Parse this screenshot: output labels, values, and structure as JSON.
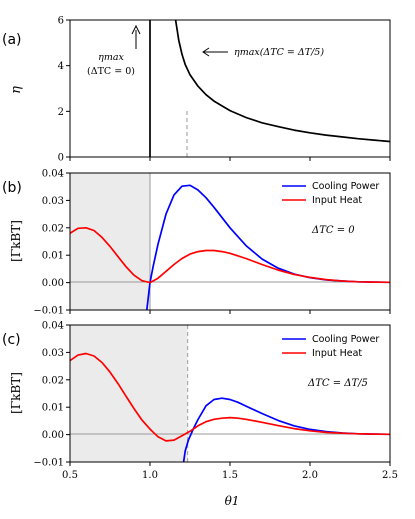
{
  "chart_data": [
    {
      "panel_label": "(a)",
      "type": "line",
      "ylabel": "η",
      "xlim": [
        0.5,
        2.5
      ],
      "ylim": [
        0,
        6
      ],
      "yticks": [
        "0",
        "2",
        "4",
        "6"
      ],
      "series": [
        {
          "color": "#000000",
          "x": [
            0.995,
            1.0,
            1.0,
            1.005
          ],
          "y": [
            0,
            0,
            6,
            6
          ]
        },
        {
          "color": "#000000",
          "x": [
            1.16,
            1.18,
            1.2,
            1.22,
            1.25,
            1.3,
            1.35,
            1.4,
            1.5,
            1.6,
            1.7,
            1.8,
            1.9,
            2.0,
            2.1,
            2.2,
            2.3,
            2.4,
            2.5
          ],
          "y": [
            6.0,
            5.1,
            4.5,
            4.05,
            3.6,
            3.1,
            2.73,
            2.45,
            2.03,
            1.73,
            1.5,
            1.33,
            1.18,
            1.06,
            0.96,
            0.88,
            0.8,
            0.74,
            0.68
          ]
        }
      ],
      "vline_dashed_x": 1.22,
      "annotations": [
        {
          "line1": "ηmax",
          "line2": "(ΔTC = 0)"
        },
        {
          "text": "ηmax(ΔTC = ΔT/5)"
        }
      ]
    },
    {
      "panel_label": "(b)",
      "type": "line",
      "ylabel": "[ΓkBT]",
      "xlim": [
        0.5,
        2.5
      ],
      "ylim": [
        -0.01,
        0.04
      ],
      "yticks": [
        "−0.01",
        "0.00",
        "0.01",
        "0.02",
        "0.03",
        "0.04"
      ],
      "shade_x": [
        0.5,
        1.0
      ],
      "hline_y": 0,
      "annotation": "ΔTC = 0",
      "legend_position": "top-right",
      "series": [
        {
          "name": "Cooling Power",
          "color": "#0000ff",
          "x": [
            0.98,
            1.0,
            1.02,
            1.05,
            1.1,
            1.15,
            1.2,
            1.25,
            1.3,
            1.35,
            1.4,
            1.5,
            1.6,
            1.7,
            1.8,
            1.9,
            2.0,
            2.1,
            2.2,
            2.3,
            2.4,
            2.5
          ],
          "y": [
            -0.01,
            0.0,
            0.006,
            0.014,
            0.025,
            0.032,
            0.0352,
            0.0355,
            0.0338,
            0.031,
            0.0275,
            0.02,
            0.0135,
            0.0086,
            0.0053,
            0.0031,
            0.0018,
            0.001,
            0.0006,
            0.0003,
            0.0002,
            0.0001
          ]
        },
        {
          "name": "Input Heat",
          "color": "#ff0000",
          "x": [
            0.5,
            0.55,
            0.6,
            0.65,
            0.7,
            0.75,
            0.8,
            0.85,
            0.9,
            0.95,
            1.0,
            1.05,
            1.1,
            1.15,
            1.2,
            1.25,
            1.3,
            1.35,
            1.4,
            1.45,
            1.5,
            1.6,
            1.7,
            1.8,
            1.9,
            2.0,
            2.1,
            2.2,
            2.3,
            2.4,
            2.5
          ],
          "y": [
            0.018,
            0.0198,
            0.02,
            0.019,
            0.0165,
            0.0132,
            0.0095,
            0.0058,
            0.0027,
            0.0007,
            0.0,
            0.0016,
            0.0041,
            0.0066,
            0.0088,
            0.0104,
            0.0113,
            0.0117,
            0.0117,
            0.0113,
            0.0107,
            0.0088,
            0.0066,
            0.0046,
            0.003,
            0.0019,
            0.0011,
            0.0006,
            0.0003,
            0.0002,
            0.0001
          ]
        }
      ]
    },
    {
      "panel_label": "(c)",
      "type": "line",
      "xlabel": "θ1",
      "ylabel": "[ΓkBT]",
      "xlim": [
        0.5,
        2.5
      ],
      "ylim": [
        -0.01,
        0.04
      ],
      "xticks": [
        "0.5",
        "1.0",
        "1.5",
        "2.0",
        "2.5"
      ],
      "yticks": [
        "−0.01",
        "0.00",
        "0.01",
        "0.02",
        "0.03",
        "0.04"
      ],
      "shade_x": [
        0.5,
        1.22
      ],
      "vline_dashed_x": 1.22,
      "hline_y": 0,
      "annotation": "ΔTC = ΔT/5",
      "legend_position": "top-right",
      "series": [
        {
          "name": "Cooling Power",
          "color": "#0000ff",
          "x": [
            1.21,
            1.22,
            1.24,
            1.27,
            1.3,
            1.35,
            1.4,
            1.45,
            1.5,
            1.55,
            1.6,
            1.7,
            1.8,
            1.9,
            2.0,
            2.1,
            2.2,
            2.3,
            2.4,
            2.5
          ],
          "y": [
            -0.01,
            -0.006,
            -0.002,
            0.002,
            0.0055,
            0.0105,
            0.0128,
            0.0133,
            0.0128,
            0.0118,
            0.0104,
            0.0077,
            0.0052,
            0.0032,
            0.0019,
            0.0011,
            0.0006,
            0.0003,
            0.0002,
            0.0001
          ]
        },
        {
          "name": "Input Heat",
          "color": "#ff0000",
          "x": [
            0.5,
            0.55,
            0.6,
            0.65,
            0.7,
            0.75,
            0.8,
            0.85,
            0.9,
            0.95,
            1.0,
            1.05,
            1.1,
            1.15,
            1.2,
            1.25,
            1.3,
            1.35,
            1.4,
            1.45,
            1.5,
            1.55,
            1.6,
            1.7,
            1.8,
            1.9,
            2.0,
            2.1,
            2.2,
            2.3,
            2.4,
            2.5
          ],
          "y": [
            0.027,
            0.029,
            0.0296,
            0.0287,
            0.0263,
            0.0228,
            0.0186,
            0.014,
            0.0095,
            0.0053,
            0.002,
            -0.0008,
            -0.0023,
            -0.002,
            -0.0004,
            0.0012,
            0.0032,
            0.0047,
            0.0056,
            0.006,
            0.0062,
            0.006,
            0.0056,
            0.0045,
            0.0033,
            0.0022,
            0.0014,
            0.0008,
            0.0005,
            0.0003,
            0.0002,
            0.0001
          ]
        }
      ]
    }
  ]
}
